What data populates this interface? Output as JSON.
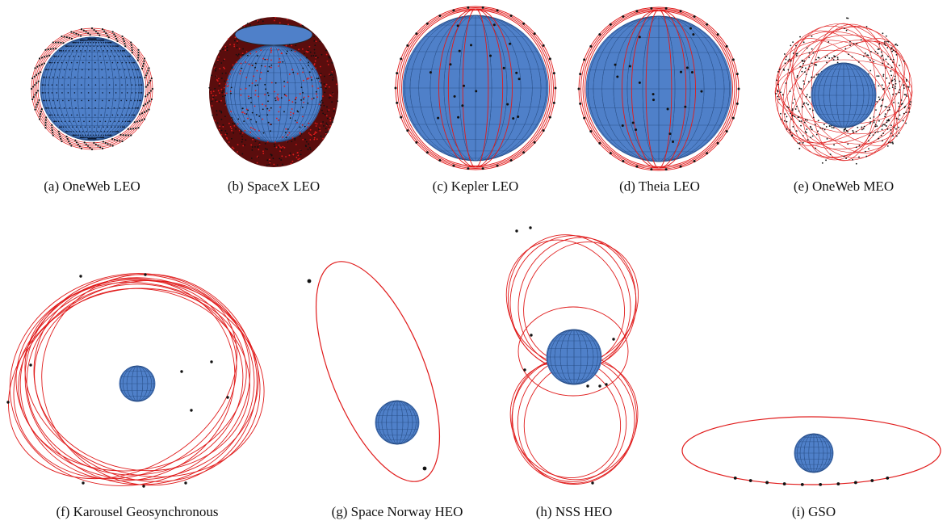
{
  "colors": {
    "earth": "#4f80c9",
    "earth_dark": "#3a64a6",
    "grid": "#1d3f73",
    "orbit": "#e01b1b",
    "satellite": "#111111"
  },
  "panels": [
    {
      "id": "a",
      "caption": "(a) OneWeb LEO"
    },
    {
      "id": "b",
      "caption": "(b) SpaceX LEO"
    },
    {
      "id": "c",
      "caption": "(c) Kepler LEO"
    },
    {
      "id": "d",
      "caption": "(d) Theia LEO"
    },
    {
      "id": "e",
      "caption": "(e) OneWeb MEO"
    },
    {
      "id": "f",
      "caption": "(f) Karousel Geosynchronous"
    },
    {
      "id": "g",
      "caption": "(g) Space Norway HEO"
    },
    {
      "id": "h",
      "caption": "(h) NSS HEO"
    },
    {
      "id": "i",
      "caption": "(i) GSO"
    }
  ]
}
